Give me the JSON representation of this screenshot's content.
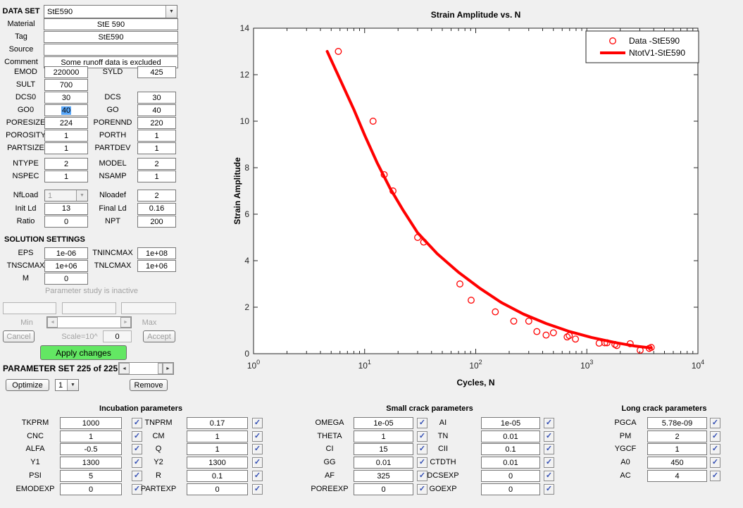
{
  "colors": {
    "window_bg": "#f0f0f0",
    "accent_green": "#63e763",
    "selection_blue": "#58a6f8",
    "series_red": "#ff0000"
  },
  "dataset": {
    "label": "DATA SET",
    "value": "StE590"
  },
  "info_rows": [
    {
      "label": "Material",
      "value": "StE 590"
    },
    {
      "label": "Tag",
      "value": "StE590"
    },
    {
      "label": "Source",
      "value": ""
    },
    {
      "label": "Comment",
      "value": "Some runoff data is excluded"
    }
  ],
  "material_rows": [
    {
      "l1": "EMOD",
      "v1": "220000",
      "l2": "SYLD",
      "v2": "425"
    },
    {
      "l1": "SULT",
      "v1": "700"
    },
    {
      "l1": "DCS0",
      "v1": "30",
      "l2": "DCS",
      "v2": "30"
    },
    {
      "l1": "GO0",
      "v1": "40",
      "v1_selected": true,
      "l2": "GO",
      "v2": "40"
    },
    {
      "l1": "PORESIZE",
      "v1": "224",
      "l2": "PORENND",
      "v2": "220"
    },
    {
      "l1": "POROSITY",
      "v1": "1",
      "l2": "PORTH",
      "v2": "1"
    },
    {
      "l1": "PARTSIZE",
      "v1": "1",
      "l2": "PARTDEV",
      "v2": "1"
    }
  ],
  "model_rows": [
    {
      "l1": "NTYPE",
      "v1": "2",
      "l2": "MODEL",
      "v2": "2"
    },
    {
      "l1": "NSPEC",
      "v1": "1",
      "l2": "NSAMP",
      "v2": "1"
    }
  ],
  "load_rows": [
    {
      "l1": "NfLoad",
      "v1": "1",
      "combo1": true,
      "disabled1": true,
      "l2": "Nloadef",
      "v2": "2"
    },
    {
      "l1": "Init Ld",
      "v1": "13",
      "l2": "Final Ld",
      "v2": "0.16"
    },
    {
      "l1": "Ratio",
      "v1": "0",
      "l2": "NPT",
      "v2": "200"
    }
  ],
  "solution": {
    "title": "SOLUTION SETTINGS",
    "rows": [
      {
        "l1": "EPS",
        "v1": "1e-06",
        "l2": "TNINCMAX",
        "v2": "1e+08"
      },
      {
        "l1": "TNSCMAX",
        "v1": "1e+06",
        "l2": "TNLCMAX",
        "v2": "1e+06"
      },
      {
        "l1": "M",
        "v1": "0"
      }
    ]
  },
  "study": {
    "status": "Parameter study is inactive",
    "fields": [
      "",
      "",
      ""
    ],
    "min": "Min",
    "max": "Max",
    "cancel": "Cancel",
    "scale": "Scale=10^",
    "scale_value": "0",
    "accept": "Accept",
    "apply": "Apply changes"
  },
  "paramset": {
    "label": "PARAMETER SET 225 of 225",
    "optimize": "Optimize",
    "optimize_value": "1",
    "remove": "Remove"
  },
  "panels": [
    {
      "title": "Incubation parameters",
      "rows": [
        [
          {
            "label": "TKPRM",
            "value": "1000",
            "checked": true
          },
          {
            "label": "TNPRM",
            "value": "0.17",
            "checked": true
          }
        ],
        [
          {
            "label": "CNC",
            "value": "1",
            "checked": true
          },
          {
            "label": "CM",
            "value": "1",
            "checked": true
          }
        ],
        [
          {
            "label": "ALFA",
            "value": "-0.5",
            "checked": true
          },
          {
            "label": "Q",
            "value": "1",
            "checked": true
          }
        ],
        [
          {
            "label": "Y1",
            "value": "1300",
            "checked": true
          },
          {
            "label": "Y2",
            "value": "1300",
            "checked": true
          }
        ],
        [
          {
            "label": "PSI",
            "value": "5",
            "checked": true
          },
          {
            "label": "R",
            "value": "0.1",
            "checked": true
          }
        ],
        [
          {
            "label": "EMODEXP",
            "value": "0",
            "checked": true
          },
          {
            "label": "PARTEXP",
            "value": "0",
            "checked": true
          }
        ]
      ]
    },
    {
      "title": "Small crack parameters",
      "rows": [
        [
          {
            "label": "OMEGA",
            "value": "1e-05",
            "checked": true
          },
          {
            "label": "AI",
            "value": "1e-05",
            "checked": true
          }
        ],
        [
          {
            "label": "THETA",
            "value": "1",
            "checked": true
          },
          {
            "label": "TN",
            "value": "0.01",
            "checked": true
          }
        ],
        [
          {
            "label": "CI",
            "value": "15",
            "checked": true
          },
          {
            "label": "CII",
            "value": "0.1",
            "checked": true
          }
        ],
        [
          {
            "label": "GG",
            "value": "0.01",
            "checked": true
          },
          {
            "label": "CTDTH",
            "value": "0.01",
            "checked": true
          }
        ],
        [
          {
            "label": "AF",
            "value": "325",
            "checked": true
          },
          {
            "label": "DCSEXP",
            "value": "0",
            "checked": true
          }
        ],
        [
          {
            "label": "POREEXP",
            "value": "0",
            "checked": true
          },
          {
            "label": "GOEXP",
            "value": "0",
            "checked": true
          }
        ]
      ]
    },
    {
      "title": "Long crack parameters",
      "rows": [
        [
          {
            "label": "PGCA",
            "value": "5.78e-09",
            "checked": true
          }
        ],
        [
          {
            "label": "PM",
            "value": "2",
            "checked": true
          }
        ],
        [
          {
            "label": "YGCF",
            "value": "1",
            "checked": true
          }
        ],
        [
          {
            "label": "A0",
            "value": "450",
            "checked": true
          }
        ],
        [
          {
            "label": "AC",
            "value": "4",
            "checked": true
          }
        ]
      ]
    }
  ],
  "chart_data": {
    "type": "scatter",
    "title": "Strain Amplitude vs. N",
    "xlabel": "Cycles, N",
    "ylabel": "Strain Amplitude",
    "x_scale": "log",
    "xlim": [
      1,
      10000
    ],
    "ylim": [
      0,
      14
    ],
    "yticks": [
      0,
      2,
      4,
      6,
      8,
      10,
      12,
      14
    ],
    "xtick_exponents": [
      0,
      1,
      2,
      3,
      4
    ],
    "grid": false,
    "legend_position": "top-right",
    "series": [
      {
        "name": "Data -StE590",
        "type": "scatter",
        "marker": "circle",
        "color": "#ff0000",
        "points": [
          [
            5.8,
            13.0
          ],
          [
            11.9,
            10.0
          ],
          [
            15,
            7.7
          ],
          [
            18,
            7.0
          ],
          [
            30,
            5.0
          ],
          [
            34,
            4.8
          ],
          [
            72,
            3.0
          ],
          [
            91,
            2.3
          ],
          [
            150,
            1.8
          ],
          [
            220,
            1.4
          ],
          [
            300,
            1.4
          ],
          [
            355,
            0.95
          ],
          [
            430,
            0.8
          ],
          [
            500,
            0.9
          ],
          [
            665,
            0.72
          ],
          [
            695,
            0.78
          ],
          [
            790,
            0.63
          ],
          [
            1290,
            0.45
          ],
          [
            1450,
            0.47
          ],
          [
            1520,
            0.47
          ],
          [
            1790,
            0.4
          ],
          [
            1860,
            0.35
          ],
          [
            2455,
            0.43
          ],
          [
            3020,
            0.15
          ],
          [
            3645,
            0.23
          ],
          [
            3800,
            0.27
          ]
        ]
      },
      {
        "name": "NtotV1-StE590",
        "type": "line",
        "color": "#ff0000",
        "line_width": 4,
        "points": [
          [
            4.6,
            13.0
          ],
          [
            6,
            11.8
          ],
          [
            8,
            10.5
          ],
          [
            10,
            9.4
          ],
          [
            13,
            8.2
          ],
          [
            17,
            7.1
          ],
          [
            22,
            6.2
          ],
          [
            30,
            5.2
          ],
          [
            45,
            4.3
          ],
          [
            70,
            3.5
          ],
          [
            110,
            2.8
          ],
          [
            170,
            2.2
          ],
          [
            270,
            1.7
          ],
          [
            430,
            1.3
          ],
          [
            700,
            0.95
          ],
          [
            1100,
            0.7
          ],
          [
            1800,
            0.48
          ],
          [
            2700,
            0.33
          ],
          [
            3800,
            0.25
          ]
        ]
      }
    ]
  }
}
